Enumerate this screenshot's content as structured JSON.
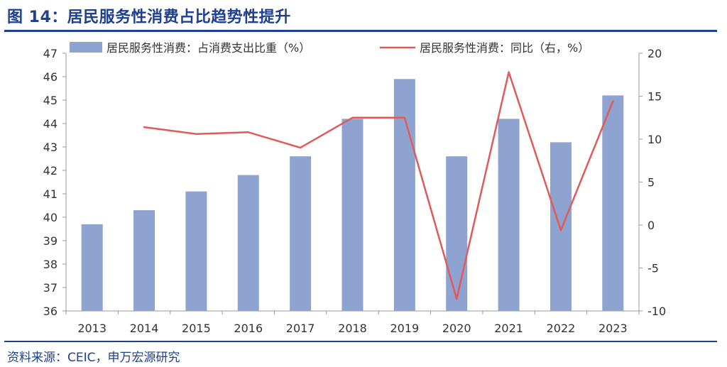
{
  "figure_title": "图 14：居民服务性消费占比趋势性提升",
  "source": "资料来源：CEIC，申万宏源研究",
  "colors": {
    "title": "#1f3f8f",
    "bar": "#8ea3d0",
    "line": "#e05a5a",
    "axis": "#333333"
  },
  "chart_data": {
    "type": "bar",
    "categories": [
      "2013",
      "2014",
      "2015",
      "2016",
      "2017",
      "2018",
      "2019",
      "2020",
      "2021",
      "2022",
      "2023"
    ],
    "series": [
      {
        "name": "居民服务性消费：占消费支出比重（%）",
        "type": "bar",
        "axis": "left",
        "values": [
          39.7,
          40.3,
          41.1,
          41.8,
          42.6,
          44.2,
          45.9,
          42.6,
          44.2,
          43.2,
          45.2
        ]
      },
      {
        "name": "居民服务性消费：同比（右，%）",
        "type": "line",
        "axis": "right",
        "values": [
          null,
          11.4,
          10.6,
          10.8,
          9.0,
          12.5,
          12.5,
          -8.6,
          17.8,
          -0.6,
          14.4
        ]
      }
    ],
    "ylim": [
      36,
      47
    ],
    "y_ticks": [
      "36",
      "37",
      "38",
      "39",
      "40",
      "41",
      "42",
      "43",
      "44",
      "45",
      "46",
      "47"
    ],
    "y2lim": [
      -10,
      20
    ],
    "y2_ticks": [
      "-10",
      "-5",
      "0",
      "5",
      "10",
      "15",
      "20"
    ],
    "grid": false,
    "legend": "top"
  }
}
